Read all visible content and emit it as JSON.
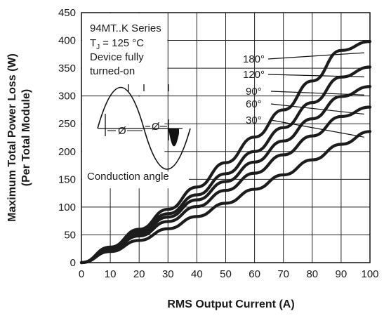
{
  "chart_data": {
    "type": "line",
    "xlabel": "RMS Output Current (A)",
    "ylabel_lines": [
      "Maximum Total Power Loss (W)",
      "(Per Total Module)"
    ],
    "xlim": [
      0,
      100
    ],
    "ylim": [
      0,
      450
    ],
    "xticks": [
      0,
      10,
      20,
      30,
      40,
      50,
      60,
      70,
      80,
      90,
      100
    ],
    "yticks": [
      0,
      50,
      100,
      150,
      200,
      250,
      300,
      350,
      400,
      450
    ],
    "grid": true,
    "annotation_lines": [
      "94MT..K Series",
      "= 125 °C",
      "Device fully",
      "turned-on"
    ],
    "tj_symbol": "T",
    "tj_sub": "J",
    "inset_labels": [
      "Ø",
      "Ø"
    ],
    "inset_caption": "Conduction angle",
    "series": [
      {
        "name": "180°",
        "x": [
          0,
          10,
          20,
          30,
          40,
          50,
          60,
          70,
          80,
          90,
          100
        ],
        "y": [
          0,
          28,
          60,
          96,
          136,
          180,
          226,
          275,
          327,
          382,
          398
        ]
      },
      {
        "name": "120°",
        "x": [
          0,
          10,
          20,
          30,
          40,
          50,
          60,
          70,
          80,
          90,
          100
        ],
        "y": [
          0,
          27,
          56,
          88,
          122,
          160,
          200,
          243,
          288,
          334,
          352
        ]
      },
      {
        "name": "90°",
        "x": [
          0,
          10,
          20,
          30,
          40,
          50,
          60,
          70,
          80,
          90,
          100
        ],
        "y": [
          0,
          26,
          53,
          82,
          113,
          146,
          181,
          219,
          259,
          299,
          317
        ]
      },
      {
        "name": "60°",
        "x": [
          0,
          10,
          20,
          30,
          40,
          50,
          60,
          70,
          80,
          90,
          100
        ],
        "y": [
          0,
          24,
          48,
          74,
          101,
          130,
          161,
          194,
          228,
          263,
          280
        ]
      },
      {
        "name": "30°",
        "x": [
          0,
          10,
          20,
          30,
          40,
          50,
          60,
          70,
          80,
          90,
          100
        ],
        "y": [
          0,
          20,
          40,
          61,
          83,
          107,
          132,
          158,
          185,
          213,
          236
        ]
      }
    ]
  }
}
